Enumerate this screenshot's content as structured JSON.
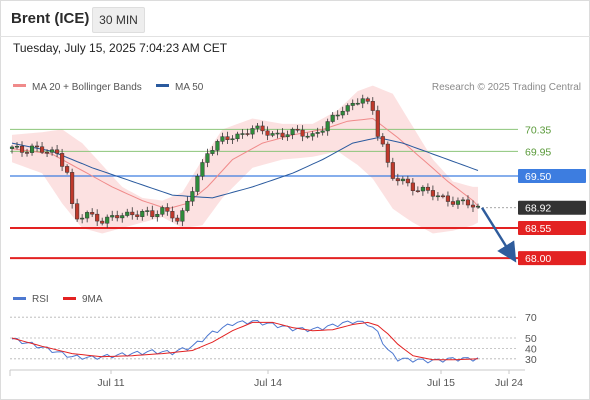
{
  "header": {
    "instrument": "Brent (ICE)",
    "interval": "30 MIN"
  },
  "timestamp": "Tuesday, July 15, 2025 7:04:23 AM CET",
  "legend": {
    "items": [
      {
        "label": "MA 20 + Bollinger Bands",
        "color": "#f08a8a"
      },
      {
        "label": "MA 50",
        "color": "#2a5a9e"
      }
    ],
    "credit": "Research © 2025 Trading Central"
  },
  "colors": {
    "green": "#8cc47a",
    "blue": "#3d7de0",
    "red": "#e32222",
    "dark": "#333333",
    "band": "#fcdcdc",
    "up": "#2e8b3a",
    "down": "#c0392b"
  },
  "chart_data": [
    {
      "type": "candlestick",
      "title": "",
      "x_ticks": [
        "Jul 11",
        "Jul 14",
        "Jul 15",
        "Jul 24"
      ],
      "ylim": [
        67.82,
        70.96
      ],
      "series_names": [
        "MA 20 + Bollinger Bands",
        "MA 50"
      ],
      "levels": [
        {
          "value": 70.35,
          "label": "70.35",
          "style": "green-thin"
        },
        {
          "value": 69.95,
          "label": "69.95",
          "style": "green-thin"
        },
        {
          "value": 69.5,
          "label": "69.50",
          "style": "blue"
        },
        {
          "value": 68.92,
          "label": "68.92",
          "style": "current-price"
        },
        {
          "value": 68.55,
          "label": "68.55",
          "style": "red"
        },
        {
          "value": 68.0,
          "label": "68.00",
          "style": "red"
        }
      ],
      "price_path": [
        [
          0,
          70.0
        ],
        [
          2,
          69.95
        ],
        [
          4,
          70.05
        ],
        [
          6,
          69.95
        ],
        [
          9,
          69.9
        ],
        [
          11,
          69.6
        ],
        [
          12,
          68.95
        ],
        [
          13,
          68.7
        ],
        [
          15,
          68.8
        ],
        [
          18,
          68.7
        ],
        [
          21,
          68.75
        ],
        [
          23,
          68.8
        ],
        [
          26,
          68.85
        ],
        [
          28,
          68.75
        ],
        [
          30,
          68.9
        ],
        [
          32,
          68.8
        ],
        [
          33,
          68.7
        ],
        [
          34,
          68.8
        ],
        [
          35,
          69.0
        ],
        [
          37,
          69.5
        ],
        [
          39,
          69.95
        ],
        [
          42,
          70.15
        ],
        [
          45,
          70.25
        ],
        [
          48,
          70.35
        ],
        [
          51,
          70.3
        ],
        [
          54,
          70.25
        ],
        [
          57,
          70.3
        ],
        [
          60,
          70.25
        ],
        [
          62,
          70.35
        ],
        [
          64,
          70.55
        ],
        [
          66,
          70.75
        ],
        [
          68,
          70.8
        ],
        [
          70,
          70.9
        ],
        [
          72,
          70.7
        ],
        [
          73,
          70.3
        ],
        [
          74,
          70.1
        ],
        [
          75,
          69.7
        ],
        [
          76,
          69.45
        ],
        [
          78,
          69.4
        ],
        [
          80,
          69.3
        ],
        [
          82,
          69.25
        ],
        [
          84,
          69.15
        ],
        [
          86,
          69.1
        ],
        [
          88,
          69.05
        ],
        [
          90,
          69.0
        ],
        [
          92,
          68.95
        ],
        [
          93,
          68.92
        ]
      ],
      "ma20_path": [
        [
          0,
          70.0
        ],
        [
          8,
          69.9
        ],
        [
          14,
          69.6
        ],
        [
          20,
          69.3
        ],
        [
          26,
          69.05
        ],
        [
          31,
          68.9
        ],
        [
          35,
          69.0
        ],
        [
          39,
          69.3
        ],
        [
          44,
          69.8
        ],
        [
          50,
          70.1
        ],
        [
          56,
          70.25
        ],
        [
          62,
          70.35
        ],
        [
          67,
          70.5
        ],
        [
          72,
          70.55
        ],
        [
          77,
          70.2
        ],
        [
          82,
          69.8
        ],
        [
          87,
          69.4
        ],
        [
          92,
          69.05
        ],
        [
          93,
          68.95
        ]
      ],
      "ma50_path": [
        [
          0,
          70.1
        ],
        [
          8,
          69.95
        ],
        [
          16,
          69.65
        ],
        [
          24,
          69.4
        ],
        [
          32,
          69.15
        ],
        [
          40,
          69.1
        ],
        [
          48,
          69.3
        ],
        [
          56,
          69.55
        ],
        [
          62,
          69.8
        ],
        [
          68,
          70.1
        ],
        [
          73,
          70.2
        ],
        [
          78,
          70.1
        ],
        [
          84,
          69.9
        ],
        [
          90,
          69.7
        ],
        [
          93,
          69.6
        ]
      ],
      "bb_upper": [
        [
          0,
          70.25
        ],
        [
          6,
          70.3
        ],
        [
          10,
          70.35
        ],
        [
          14,
          70.1
        ],
        [
          18,
          69.7
        ],
        [
          22,
          69.3
        ],
        [
          26,
          69.1
        ],
        [
          30,
          69.05
        ],
        [
          34,
          69.2
        ],
        [
          38,
          69.8
        ],
        [
          42,
          70.35
        ],
        [
          48,
          70.55
        ],
        [
          54,
          70.45
        ],
        [
          60,
          70.45
        ],
        [
          65,
          70.7
        ],
        [
          69,
          71.05
        ],
        [
          72,
          71.15
        ],
        [
          76,
          71.0
        ],
        [
          80,
          70.4
        ],
        [
          84,
          69.8
        ],
        [
          88,
          69.4
        ],
        [
          92,
          69.3
        ],
        [
          93,
          69.3
        ]
      ],
      "bb_lower": [
        [
          0,
          69.75
        ],
        [
          6,
          69.55
        ],
        [
          10,
          69.0
        ],
        [
          14,
          68.55
        ],
        [
          18,
          68.45
        ],
        [
          22,
          68.55
        ],
        [
          26,
          68.65
        ],
        [
          30,
          68.75
        ],
        [
          34,
          68.55
        ],
        [
          38,
          68.6
        ],
        [
          42,
          69.1
        ],
        [
          48,
          69.65
        ],
        [
          54,
          69.8
        ],
        [
          60,
          69.85
        ],
        [
          65,
          69.95
        ],
        [
          69,
          69.7
        ],
        [
          72,
          69.45
        ],
        [
          76,
          68.9
        ],
        [
          80,
          68.65
        ],
        [
          84,
          68.45
        ],
        [
          88,
          68.5
        ],
        [
          92,
          68.6
        ],
        [
          93,
          68.65
        ]
      ],
      "projection_target": 68.0
    },
    {
      "type": "line",
      "title": "",
      "series_names": [
        "RSI",
        "9MA"
      ],
      "y_ticks": [
        30,
        40,
        50,
        70
      ],
      "ylim": [
        25,
        75
      ],
      "rsi_path": [
        [
          0,
          49
        ],
        [
          4,
          44
        ],
        [
          8,
          38
        ],
        [
          12,
          32
        ],
        [
          16,
          31
        ],
        [
          20,
          33
        ],
        [
          24,
          35
        ],
        [
          28,
          37
        ],
        [
          32,
          36
        ],
        [
          36,
          42
        ],
        [
          40,
          55
        ],
        [
          44,
          64
        ],
        [
          48,
          66
        ],
        [
          52,
          63
        ],
        [
          56,
          59
        ],
        [
          60,
          58
        ],
        [
          64,
          62
        ],
        [
          68,
          66
        ],
        [
          71,
          64
        ],
        [
          73,
          55
        ],
        [
          75,
          38
        ],
        [
          77,
          30
        ],
        [
          80,
          29
        ],
        [
          84,
          28
        ],
        [
          88,
          30
        ],
        [
          93,
          30
        ]
      ],
      "ma9_path": [
        [
          0,
          50
        ],
        [
          6,
          42
        ],
        [
          12,
          35
        ],
        [
          18,
          32
        ],
        [
          24,
          33
        ],
        [
          30,
          35
        ],
        [
          36,
          38
        ],
        [
          40,
          46
        ],
        [
          44,
          57
        ],
        [
          48,
          65
        ],
        [
          52,
          65
        ],
        [
          56,
          60
        ],
        [
          60,
          57
        ],
        [
          64,
          58
        ],
        [
          68,
          63
        ],
        [
          71,
          65
        ],
        [
          73,
          62
        ],
        [
          75,
          54
        ],
        [
          77,
          44
        ],
        [
          80,
          33
        ],
        [
          84,
          29
        ],
        [
          88,
          29
        ],
        [
          93,
          30
        ]
      ]
    }
  ]
}
